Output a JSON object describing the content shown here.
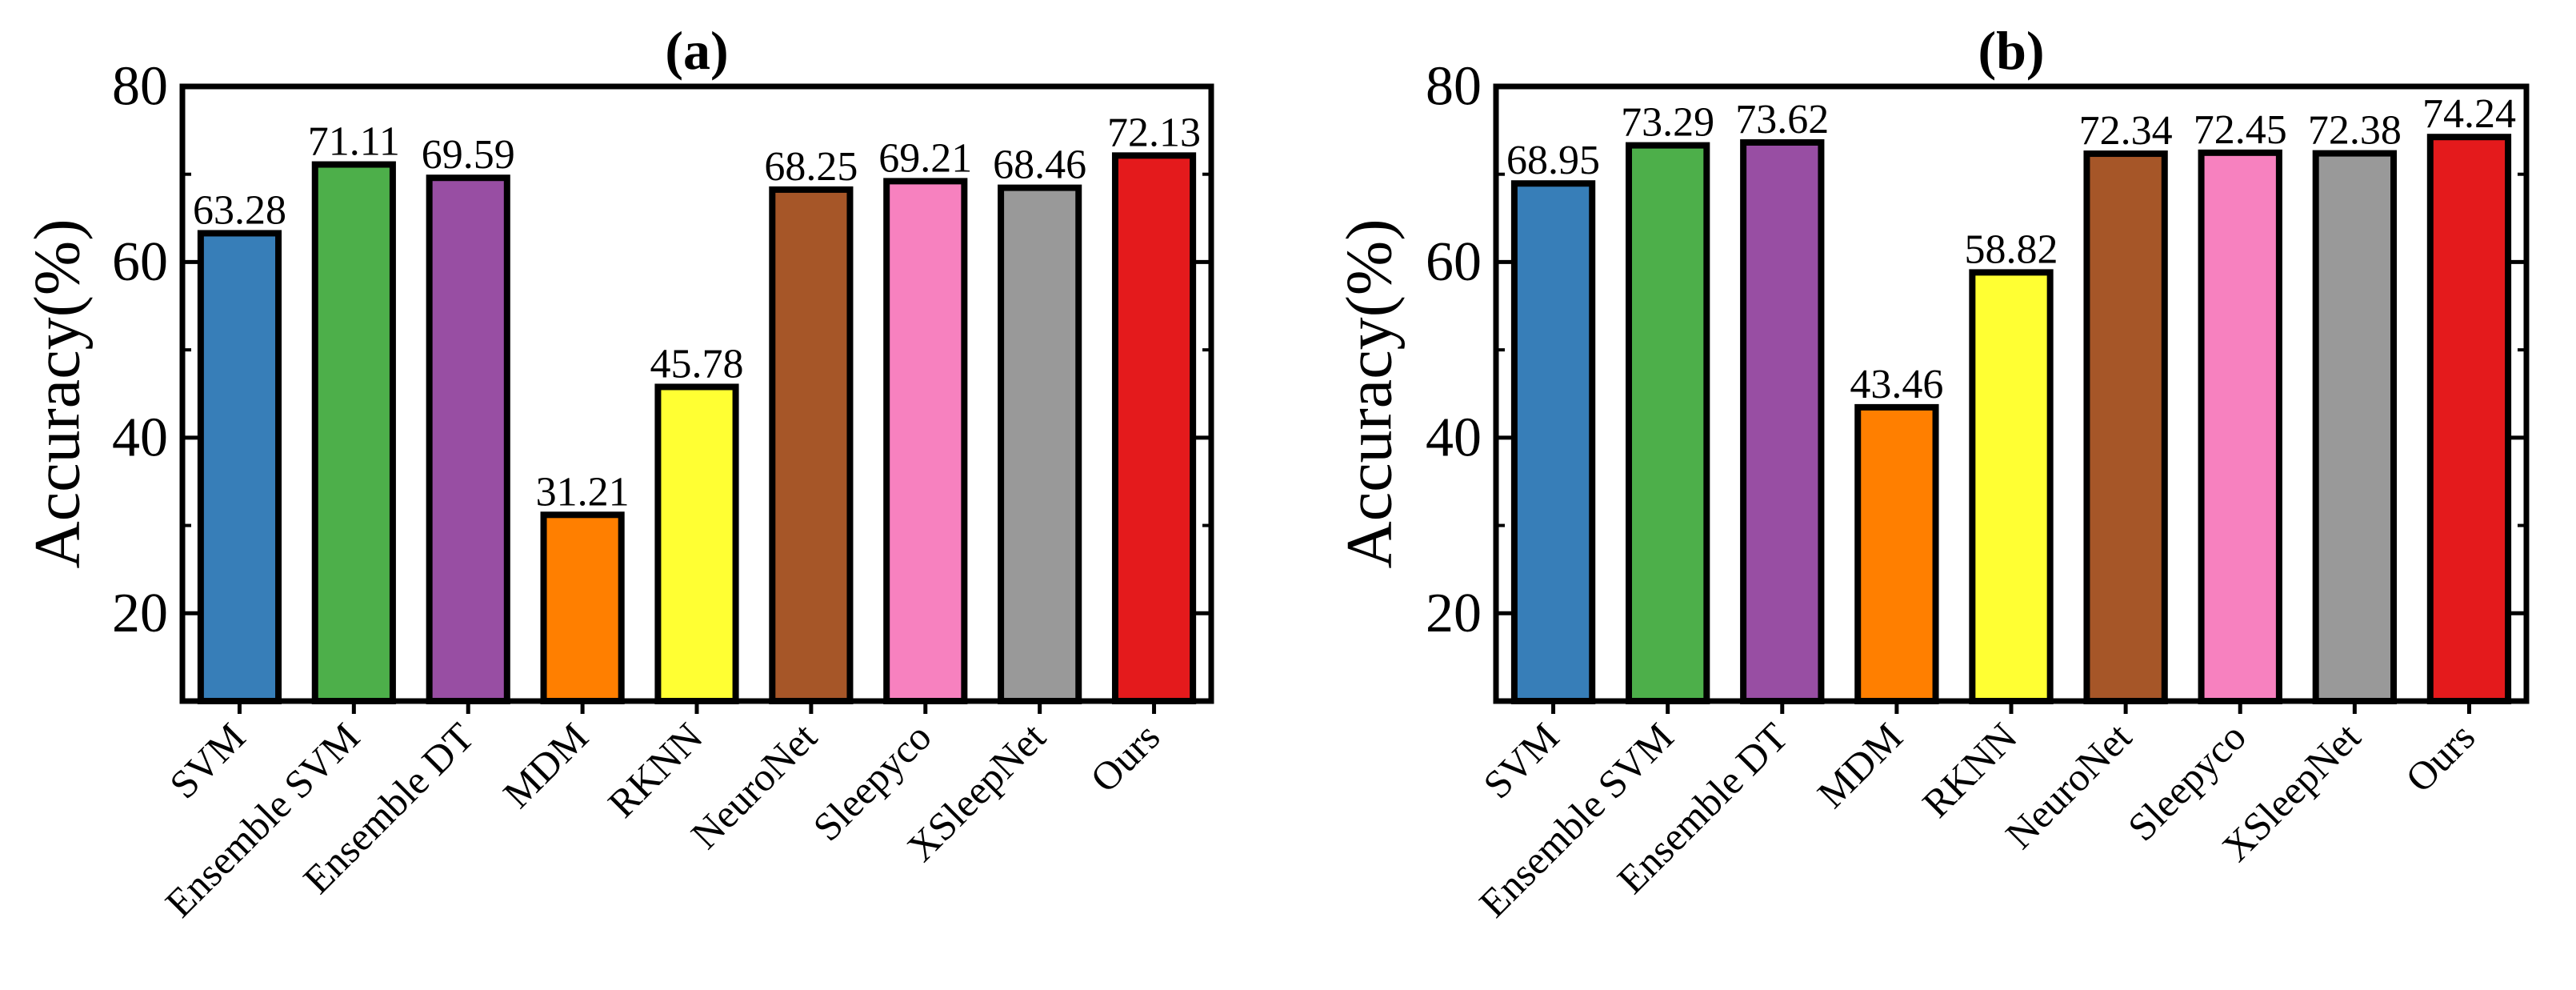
{
  "figure": {
    "panels": [
      "(a)",
      "(b)"
    ]
  },
  "chart_data": [
    {
      "type": "bar",
      "title": "(a)",
      "xlabel": "",
      "ylabel": "Accuracy(%)",
      "ylim": [
        10,
        80
      ],
      "yticks": [
        20,
        40,
        60,
        80
      ],
      "grid": false,
      "categories": [
        "SVM",
        "Ensemble SVM",
        "Ensemble DT",
        "MDM",
        "RKNN",
        "NeuroNet",
        "Sleepyco",
        "XSleepNet",
        "Ours"
      ],
      "values": [
        63.28,
        71.11,
        69.59,
        31.21,
        45.78,
        68.25,
        69.21,
        68.46,
        72.13
      ],
      "value_labels": [
        "63.28",
        "71.11",
        "69.59",
        "31.21",
        "45.78",
        "68.25",
        "69.21",
        "68.46",
        "72.13"
      ],
      "colors": [
        "#377eb8",
        "#4daf4a",
        "#984ea3",
        "#ff7f00",
        "#ffff33",
        "#a65628",
        "#f781bf",
        "#999999",
        "#e41a1c"
      ]
    },
    {
      "type": "bar",
      "title": "(b)",
      "xlabel": "",
      "ylabel": "Accuracy(%)",
      "ylim": [
        10,
        80
      ],
      "yticks": [
        20,
        40,
        60,
        80
      ],
      "grid": false,
      "categories": [
        "SVM",
        "Ensemble SVM",
        "Ensemble DT",
        "MDM",
        "RKNN",
        "NeuroNet",
        "Sleepyco",
        "XSleepNet",
        "Ours"
      ],
      "values": [
        68.95,
        73.29,
        73.62,
        43.46,
        58.82,
        72.34,
        72.45,
        72.38,
        74.24
      ],
      "value_labels": [
        "68.95",
        "73.29",
        "73.62",
        "43.46",
        "58.82",
        "72.34",
        "72.45",
        "72.38",
        "74.24"
      ],
      "colors": [
        "#377eb8",
        "#4daf4a",
        "#984ea3",
        "#ff7f00",
        "#ffff33",
        "#a65628",
        "#f781bf",
        "#999999",
        "#e41a1c"
      ]
    }
  ]
}
